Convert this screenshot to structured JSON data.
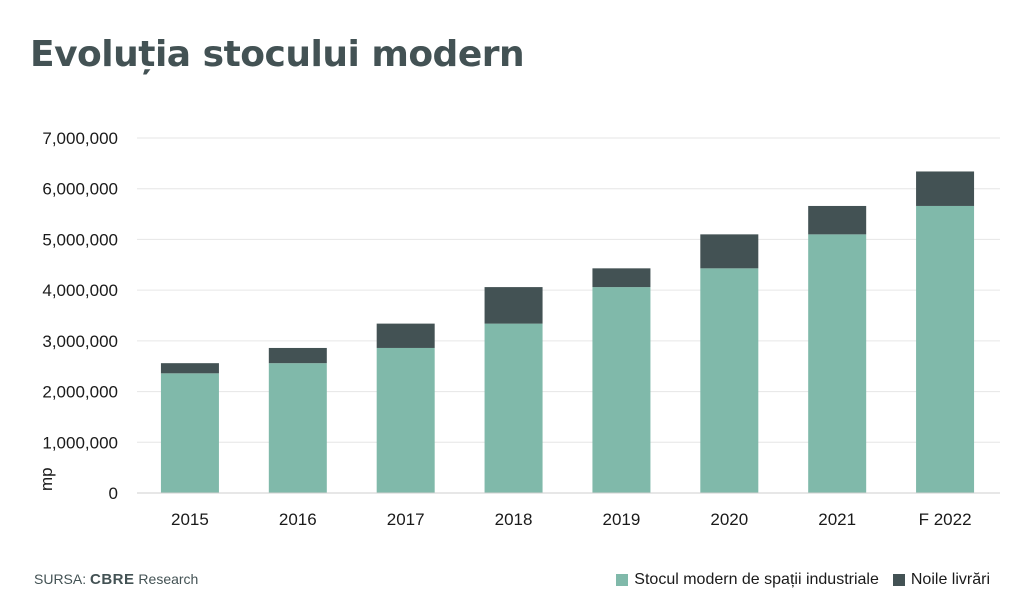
{
  "title": "Evoluția stocului modern",
  "source": {
    "prefix": "SURSA:",
    "brand": "CBRE",
    "suffix": "Research"
  },
  "colors": {
    "stock": "#80b9aa",
    "deliveries": "#435254",
    "title": "#435254",
    "grid": "#e6e6e6"
  },
  "chart_data": {
    "type": "bar",
    "stacked": true,
    "categories": [
      "2015",
      "2016",
      "2017",
      "2018",
      "2019",
      "2020",
      "2021",
      "F 2022"
    ],
    "series": [
      {
        "name": "Stocul modern de spații industriale",
        "values": [
          2360000,
          2560000,
          2860000,
          3340000,
          4060000,
          4430000,
          5100000,
          5660000
        ]
      },
      {
        "name": "Noile livrări",
        "values": [
          200000,
          300000,
          480000,
          720000,
          370000,
          670000,
          560000,
          680000
        ]
      }
    ],
    "ylabel": "mp",
    "ylim": [
      0,
      7000000
    ],
    "yticks": [
      {
        "value": 0,
        "label": "0"
      },
      {
        "value": 1000000,
        "label": "1,000,000"
      },
      {
        "value": 2000000,
        "label": "2,000,000"
      },
      {
        "value": 3000000,
        "label": "3,000,000"
      },
      {
        "value": 4000000,
        "label": "4,000,000"
      },
      {
        "value": 5000000,
        "label": "5,000,000"
      },
      {
        "value": 6000000,
        "label": "6,000,000"
      },
      {
        "value": 7000000,
        "label": "7,000,000"
      }
    ],
    "grid": true,
    "legend_position": "bottom-right"
  }
}
